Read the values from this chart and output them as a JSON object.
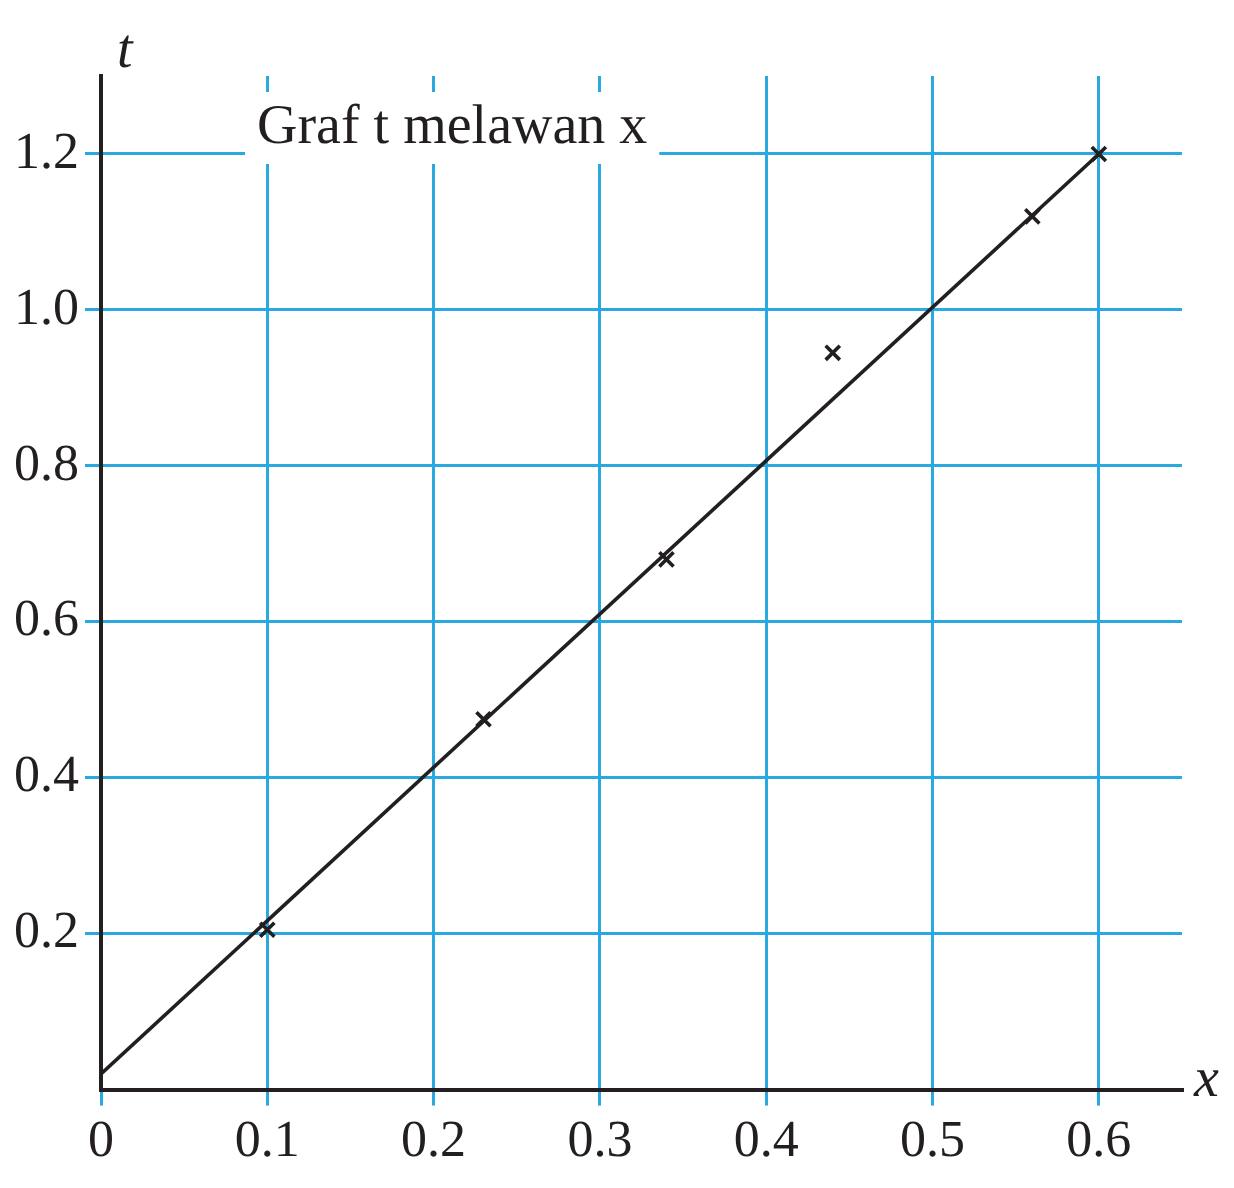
{
  "chart_data": {
    "type": "scatter",
    "title": "Graf t melawan x",
    "xlabel": "x",
    "ylabel": "t",
    "series": [
      {
        "color": "#231f20",
        "x": [
          0.1,
          0.23,
          0.34,
          0.44,
          0.56,
          0.6
        ],
        "values": [
          0.205,
          0.475,
          0.68,
          0.945,
          1.12,
          1.2
        ],
        "marker": "cross"
      },
      {
        "type": "line",
        "color": "#231f20",
        "x": [
          0,
          0.6
        ],
        "values": [
          0.02,
          1.2
        ],
        "marker": "none"
      }
    ],
    "xlim": [
      0,
      0.65
    ],
    "ylim": [
      0,
      1.3
    ],
    "xticks": [
      0,
      0.1,
      0.2,
      0.3,
      0.4,
      0.5,
      0.6
    ],
    "yticks": [
      0.2,
      0.4,
      0.6,
      0.8,
      {
        "value": 1,
        "label": "1.0"
      },
      1.2
    ],
    "grid": true,
    "legend": false
  }
}
